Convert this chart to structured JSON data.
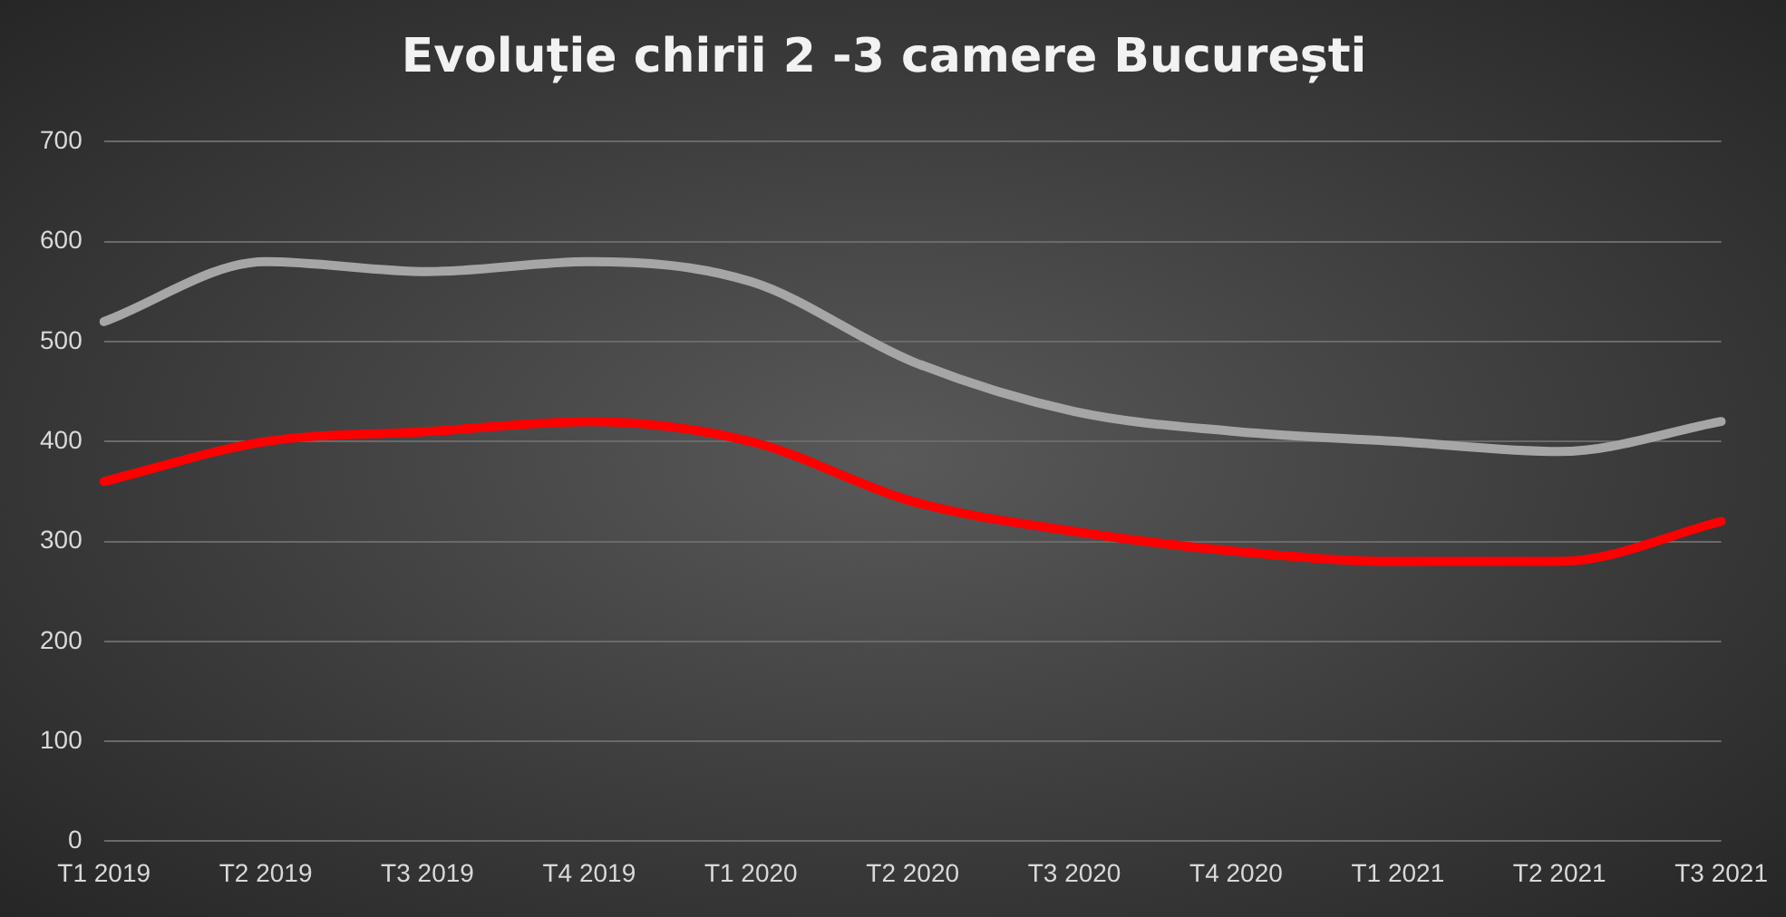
{
  "chart_data": {
    "type": "line",
    "title": "Evoluție chirii 2 -3 camere București",
    "categories": [
      "T1 2019",
      "T2 2019",
      "T3 2019",
      "T4 2019",
      "T1 2020",
      "T2 2020",
      "T3 2020",
      "T4 2020",
      "T1 2021",
      "T2 2021",
      "T3 2021"
    ],
    "series": [
      {
        "color": "#a6a6a6",
        "values": [
          520,
          580,
          570,
          580,
          560,
          480,
          430,
          410,
          400,
          390,
          420
        ]
      },
      {
        "color": "#ff0000",
        "values": [
          360,
          400,
          410,
          420,
          400,
          340,
          310,
          290,
          280,
          280,
          320
        ]
      }
    ],
    "ylim": [
      0,
      700
    ],
    "yticks": [
      0,
      100,
      200,
      300,
      400,
      500,
      600,
      700
    ],
    "grid": "y",
    "legend": false,
    "marker": "none",
    "line_style": "solid"
  }
}
